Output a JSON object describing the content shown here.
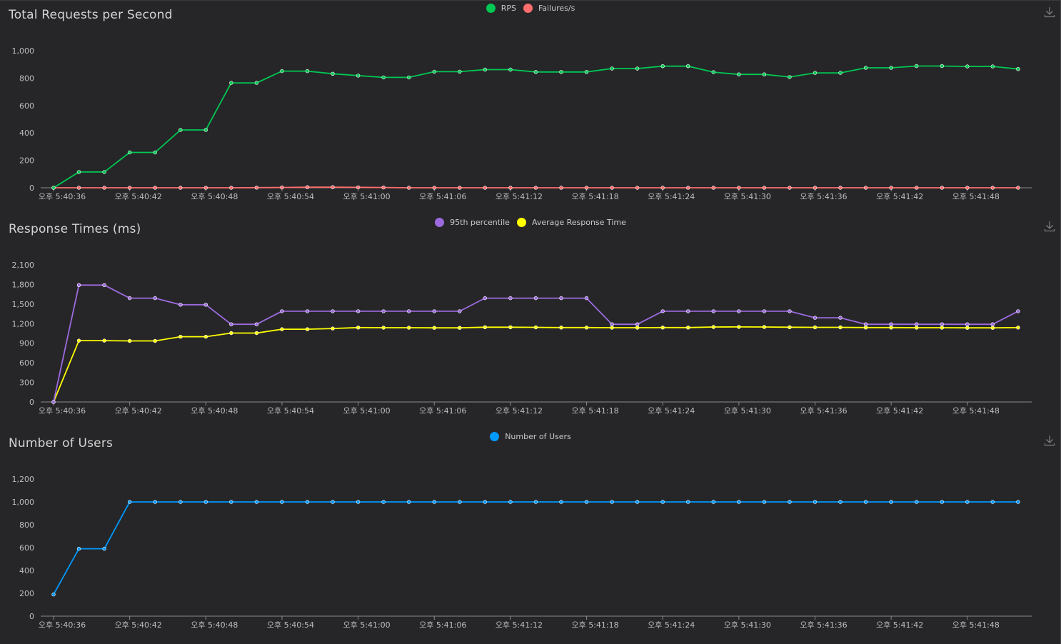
{
  "colors": {
    "background": "#262628",
    "axis": "#8a8a8a",
    "rps": "#00c853",
    "failures": "#ff6d6d",
    "p95": "#9c6ade",
    "avg": "#ffff00",
    "users": "#0099ff"
  },
  "icons": {
    "download": "download-icon"
  },
  "x_tick_labels": [
    "오후 5:40:36",
    "오후 5:40:42",
    "오후 5:40:48",
    "오후 5:40:54",
    "오후 5:41:00",
    "오후 5:41:06",
    "오후 5:41:12",
    "오후 5:41:18",
    "오후 5:41:24",
    "오후 5:41:30",
    "오후 5:41:36",
    "오후 5:41:42",
    "오후 5:41:48"
  ],
  "chart_data": [
    {
      "type": "line",
      "title": "Total Requests per Second",
      "ylim": [
        0,
        1000
      ],
      "yticks": [
        "0",
        "200",
        "400",
        "600",
        "800",
        "1,000"
      ],
      "legend_position": "top-center",
      "series": [
        {
          "name": "RPS",
          "color": "#00c853",
          "values": [
            0,
            115,
            115,
            258,
            258,
            422,
            422,
            765,
            765,
            851,
            851,
            832,
            818,
            805,
            805,
            847,
            847,
            862,
            862,
            845,
            845,
            845,
            870,
            870,
            887,
            887,
            843,
            827,
            827,
            808,
            838,
            838,
            875,
            875,
            888,
            888,
            885,
            885,
            866
          ]
        },
        {
          "name": "Failures/s",
          "color": "#ff6d6d",
          "values": [
            0,
            0,
            0,
            0,
            0,
            0,
            0,
            0,
            1,
            2,
            4,
            4,
            3,
            2,
            0,
            0,
            0,
            0,
            0,
            0,
            0,
            0,
            0,
            0,
            0,
            0,
            0,
            0,
            0,
            0,
            0,
            0,
            0,
            0,
            0,
            0,
            0,
            0,
            0
          ]
        }
      ]
    },
    {
      "type": "line",
      "title": "Response Times (ms)",
      "ylim": [
        0,
        2100
      ],
      "yticks": [
        "0",
        "300",
        "600",
        "900",
        "1,200",
        "1,500",
        "1,800",
        "2,100"
      ],
      "legend_position": "top-center",
      "series": [
        {
          "name": "95th percentile",
          "color": "#9c6ade",
          "values": [
            0,
            1790,
            1790,
            1590,
            1590,
            1490,
            1490,
            1190,
            1190,
            1390,
            1390,
            1390,
            1390,
            1390,
            1390,
            1390,
            1390,
            1590,
            1590,
            1590,
            1590,
            1590,
            1190,
            1190,
            1390,
            1390,
            1390,
            1390,
            1390,
            1390,
            1290,
            1290,
            1190,
            1190,
            1190,
            1190,
            1190,
            1190,
            1390
          ]
        },
        {
          "name": "Average Response Time",
          "color": "#ffff00",
          "values": [
            0,
            940,
            940,
            935,
            935,
            1000,
            1000,
            1055,
            1055,
            1115,
            1115,
            1125,
            1140,
            1138,
            1138,
            1135,
            1135,
            1145,
            1145,
            1143,
            1140,
            1140,
            1138,
            1138,
            1140,
            1140,
            1148,
            1150,
            1148,
            1145,
            1143,
            1143,
            1140,
            1140,
            1138,
            1138,
            1135,
            1135,
            1140
          ]
        }
      ]
    },
    {
      "type": "line",
      "title": "Number of Users",
      "ylim": [
        0,
        1200
      ],
      "yticks": [
        "0",
        "200",
        "400",
        "600",
        "800",
        "1,000",
        "1,200"
      ],
      "legend_position": "top-center",
      "series": [
        {
          "name": "Number of Users",
          "color": "#0099ff",
          "values": [
            190,
            590,
            590,
            1000,
            1000,
            1000,
            1000,
            1000,
            1000,
            1000,
            1000,
            1000,
            1000,
            1000,
            1000,
            1000,
            1000,
            1000,
            1000,
            1000,
            1000,
            1000,
            1000,
            1000,
            1000,
            1000,
            1000,
            1000,
            1000,
            1000,
            1000,
            1000,
            1000,
            1000,
            1000,
            1000,
            1000,
            1000,
            1000
          ]
        }
      ]
    }
  ]
}
